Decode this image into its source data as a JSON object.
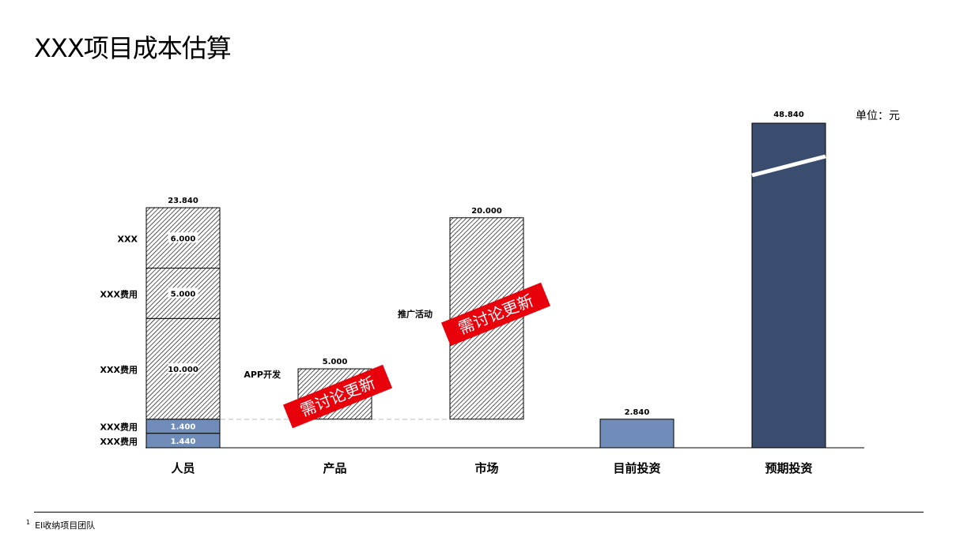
{
  "title": "XXX项目成本估算",
  "unit_label": "单位：元",
  "footnote": {
    "marker": "1",
    "text": "EI收纳项目团队"
  },
  "colors": {
    "dark_bar": "#3b4d6e",
    "light_bar": "#6f8db8",
    "stamp": "#e8000b"
  },
  "chart_data": {
    "type": "bar",
    "subtype": "waterfall",
    "categories": [
      "人员",
      "产品",
      "市场",
      "目前投资",
      "预期投资"
    ],
    "ylim": [
      0,
      24
    ],
    "axis_break_on": "预期投资",
    "grid": false,
    "bars": [
      {
        "category": "人员",
        "total_label": "23.840",
        "segments": [
          {
            "name": "XXX费用",
            "value": 1.44,
            "label": "1.440",
            "style": "light"
          },
          {
            "name": "XXX费用",
            "value": 1.4,
            "label": "1.400",
            "style": "light"
          },
          {
            "name": "XXX费用",
            "value": 10.0,
            "label": "10.000",
            "style": "hatch"
          },
          {
            "name": "XXX费用",
            "value": 5.0,
            "label": "5.000",
            "style": "hatch"
          },
          {
            "name": "XXX",
            "value": 6.0,
            "label": "6.000",
            "style": "hatch"
          }
        ]
      },
      {
        "category": "产品",
        "base": 2.84,
        "value": 5.0,
        "label": "5.000",
        "side_label": "APP开发",
        "style": "hatch",
        "stamp": "需讨论更新"
      },
      {
        "category": "市场",
        "base": 2.84,
        "value": 20.0,
        "label": "20.000",
        "side_label": "推广活动",
        "style": "hatch",
        "stamp": "需讨论更新"
      },
      {
        "category": "目前投资",
        "base": 0,
        "value": 2.84,
        "label": "2.840",
        "style": "light"
      },
      {
        "category": "预期投资",
        "base": 0,
        "value": 48.84,
        "label": "48.840",
        "style": "dark"
      }
    ]
  }
}
